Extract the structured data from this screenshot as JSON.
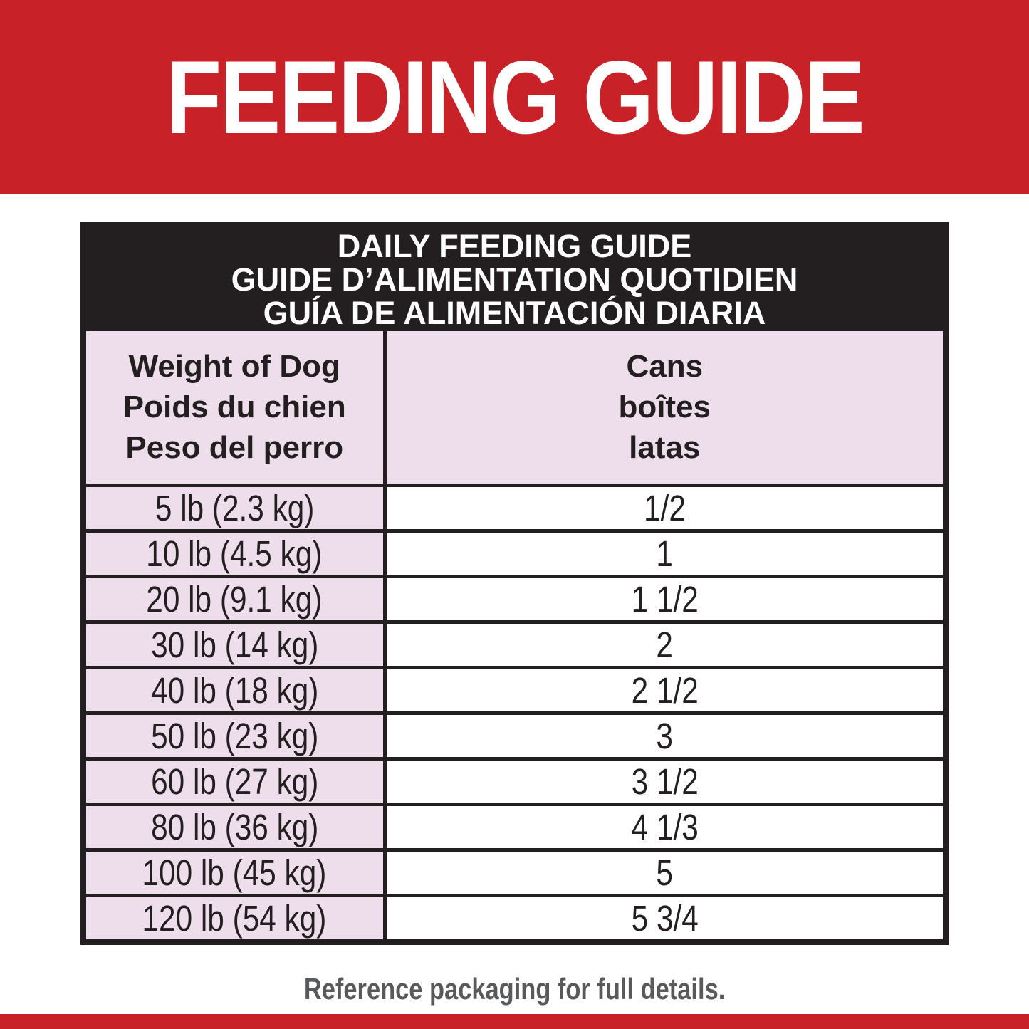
{
  "banner": {
    "title": "FEEDING GUIDE"
  },
  "table": {
    "title_lines": [
      "DAILY FEEDING GUIDE",
      "GUIDE D’ALIMENTATION QUOTIDIEN",
      "GUÍA DE ALIMENTACIÓN DIARIA"
    ],
    "col_headers": [
      {
        "lines": [
          "Weight of Dog",
          "Poids du chien",
          "Peso del perro"
        ]
      },
      {
        "lines": [
          "Cans",
          "boîtes",
          "latas"
        ]
      }
    ],
    "rows": [
      {
        "weight": "5 lb (2.3 kg)",
        "cans": "1/2"
      },
      {
        "weight": "10 lb (4.5 kg)",
        "cans": "1"
      },
      {
        "weight": "20 lb (9.1 kg)",
        "cans": "1 1/2"
      },
      {
        "weight": "30 lb (14 kg)",
        "cans": "2"
      },
      {
        "weight": "40 lb (18 kg)",
        "cans": "2 1/2"
      },
      {
        "weight": "50 lb (23 kg)",
        "cans": "3"
      },
      {
        "weight": "60 lb (27 kg)",
        "cans": "3 1/2"
      },
      {
        "weight": "80 lb (36 kg)",
        "cans": "4 1/3"
      },
      {
        "weight": "100 lb (45 kg)",
        "cans": "5"
      },
      {
        "weight": "120 lb (54 kg)",
        "cans": "5 3/4"
      }
    ]
  },
  "footer": {
    "note": "Reference packaging for full details."
  },
  "colors": {
    "banner_red": "#C82127",
    "table_black": "#231F20",
    "cell_pink": "#EEDEEC",
    "cell_white": "#FFFFFF",
    "footer_gray": "#58595B"
  },
  "chart_data": {
    "type": "table",
    "title": "DAILY FEEDING GUIDE / GUIDE D’ALIMENTATION QUOTIDIEN / GUÍA DE ALIMENTACIÓN DIARIA",
    "columns": [
      "Weight of Dog / Poids du chien / Peso del perro",
      "Cans / boîtes / latas"
    ],
    "rows": [
      [
        "5 lb (2.3 kg)",
        "1/2"
      ],
      [
        "10 lb (4.5 kg)",
        "1"
      ],
      [
        "20 lb (9.1 kg)",
        "1 1/2"
      ],
      [
        "30 lb (14 kg)",
        "2"
      ],
      [
        "40 lb (18 kg)",
        "2 1/2"
      ],
      [
        "50 lb (23 kg)",
        "3"
      ],
      [
        "60 lb (27 kg)",
        "3 1/2"
      ],
      [
        "80 lb (36 kg)",
        "4 1/3"
      ],
      [
        "100 lb (45 kg)",
        "5"
      ],
      [
        "120 lb (54 kg)",
        "5 3/4"
      ]
    ]
  }
}
